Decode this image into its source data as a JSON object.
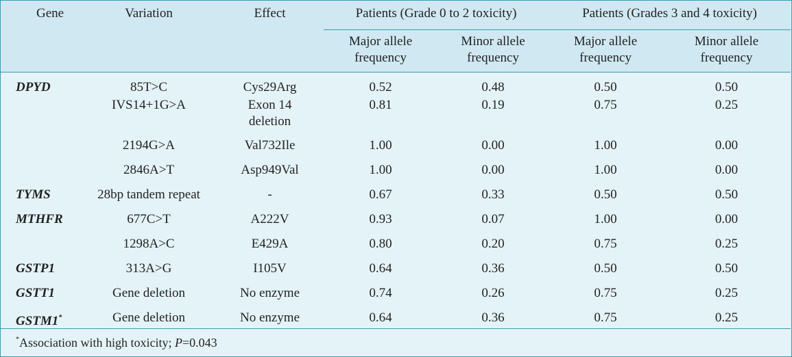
{
  "header": {
    "gene": "Gene",
    "variation": "Variation",
    "effect": "Effect",
    "group1": "Patients (Grade 0 to 2 toxicity)",
    "group2": "Patients (Grades 3 and 4 toxicity)",
    "major1a": "Major allele",
    "major1b": "frequency",
    "minor1a": "Minor allele",
    "minor1b": "frequency",
    "major2a": "Major allele",
    "major2b": "frequency",
    "minor2a": "Minor allele",
    "minor2b": "frequency"
  },
  "rows": [
    {
      "gene": "DPYD",
      "variation": "85T>C",
      "effect": "Cys29Arg",
      "maj1": "0.52",
      "min1": "0.48",
      "maj2": "0.50",
      "min2": "0.50"
    },
    {
      "gene": "",
      "variation": "IVS14+1G>A",
      "effect": "Exon 14",
      "effect2": "deletion",
      "maj1": "0.81",
      "min1": "0.19",
      "maj2": "0.75",
      "min2": "0.25"
    },
    {
      "gene": "",
      "variation": "2194G>A",
      "effect": "Val732Ile",
      "maj1": "1.00",
      "min1": "0.00",
      "maj2": "1.00",
      "min2": "0.00"
    },
    {
      "gene": "",
      "variation": "2846A>T",
      "effect": "Asp949Val",
      "maj1": "1.00",
      "min1": "0.00",
      "maj2": "1.00",
      "min2": "0.00"
    },
    {
      "gene": "TYMS",
      "variation": "28bp tandem repeat",
      "effect": "-",
      "maj1": "0.67",
      "min1": "0.33",
      "maj2": "0.50",
      "min2": "0.50"
    },
    {
      "gene": "MTHFR",
      "variation": "677C>T",
      "effect": "A222V",
      "maj1": "0.93",
      "min1": "0.07",
      "maj2": "1.00",
      "min2": "0.00"
    },
    {
      "gene": "",
      "variation": "1298A>C",
      "effect": "E429A",
      "maj1": "0.80",
      "min1": "0.20",
      "maj2": "0.75",
      "min2": "0.25"
    },
    {
      "gene": "GSTP1",
      "variation": "313A>G",
      "effect": "I105V",
      "maj1": "0.64",
      "min1": "0.36",
      "maj2": "0.50",
      "min2": "0.50"
    },
    {
      "gene": "GSTT1",
      "variation": "Gene deletion",
      "effect": "No enzyme",
      "maj1": "0.74",
      "min1": "0.26",
      "maj2": "0.75",
      "min2": "0.25"
    },
    {
      "gene": "GSTM1",
      "gene_sup": "*",
      "variation": "Gene deletion",
      "effect": "No enzyme",
      "maj1": "0.64",
      "min1": "0.36",
      "maj2": "0.75",
      "min2": "0.25"
    }
  ],
  "footnote": {
    "marker": "*",
    "text_a": "Association with high toxicity; ",
    "p": "P",
    "text_b": "=0.043"
  }
}
